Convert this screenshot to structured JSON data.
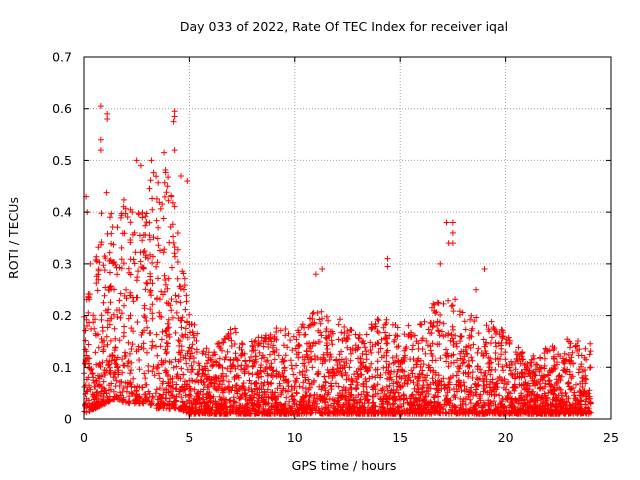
{
  "chart_data": {
    "type": "scatter",
    "title": "Day 033 of 2022, Rate Of TEC Index for receiver iqal",
    "xlabel": "GPS time / hours",
    "ylabel": "ROTI / TECUs",
    "xlim": [
      0,
      25
    ],
    "ylim": [
      0,
      0.7
    ],
    "xticks": [
      0,
      5,
      10,
      15,
      20,
      25
    ],
    "yticks": [
      0,
      0.1,
      0.2,
      0.3,
      0.4,
      0.5,
      0.6,
      0.7
    ],
    "grid": true,
    "marker": "+",
    "color": "#ff0000",
    "envelope": {
      "x": [
        0,
        0.5,
        1.0,
        1.5,
        2.0,
        2.5,
        3.0,
        3.5,
        4.0,
        4.5,
        5.0,
        5.5,
        6,
        7,
        8,
        9,
        10,
        11,
        12,
        13,
        14,
        15,
        16,
        17,
        18,
        19,
        20,
        21,
        22,
        23,
        24
      ],
      "upper": [
        0.25,
        0.3,
        0.45,
        0.38,
        0.45,
        0.4,
        0.45,
        0.5,
        0.5,
        0.35,
        0.22,
        0.15,
        0.13,
        0.18,
        0.15,
        0.18,
        0.17,
        0.22,
        0.2,
        0.16,
        0.2,
        0.18,
        0.19,
        0.25,
        0.22,
        0.2,
        0.17,
        0.12,
        0.14,
        0.16,
        0.15
      ],
      "lower": [
        0.01,
        0.02,
        0.03,
        0.04,
        0.03,
        0.03,
        0.03,
        0.02,
        0.02,
        0.02,
        0.01,
        0.01,
        0.01,
        0.01,
        0.01,
        0.01,
        0.01,
        0.01,
        0.01,
        0.01,
        0.01,
        0.01,
        0.01,
        0.01,
        0.01,
        0.01,
        0.01,
        0.01,
        0.01,
        0.01,
        0.01
      ]
    },
    "outliers": [
      {
        "x": 0.8,
        "y": 0.605
      },
      {
        "x": 1.1,
        "y": 0.59
      },
      {
        "x": 1.1,
        "y": 0.58
      },
      {
        "x": 0.8,
        "y": 0.54
      },
      {
        "x": 0.8,
        "y": 0.52
      },
      {
        "x": 4.3,
        "y": 0.595
      },
      {
        "x": 4.3,
        "y": 0.585
      },
      {
        "x": 4.25,
        "y": 0.575
      },
      {
        "x": 4.3,
        "y": 0.52
      },
      {
        "x": 2.5,
        "y": 0.5
      },
      {
        "x": 2.7,
        "y": 0.49
      },
      {
        "x": 3.2,
        "y": 0.5
      },
      {
        "x": 3.8,
        "y": 0.515
      },
      {
        "x": 0.1,
        "y": 0.43
      },
      {
        "x": 0.15,
        "y": 0.4
      },
      {
        "x": 17.2,
        "y": 0.38
      },
      {
        "x": 17.5,
        "y": 0.38
      },
      {
        "x": 17.5,
        "y": 0.36
      },
      {
        "x": 17.3,
        "y": 0.34
      },
      {
        "x": 17.5,
        "y": 0.34
      },
      {
        "x": 0.3,
        "y": 0.3
      },
      {
        "x": 4.6,
        "y": 0.47
      },
      {
        "x": 4.9,
        "y": 0.46
      },
      {
        "x": 14.4,
        "y": 0.31
      },
      {
        "x": 14.4,
        "y": 0.295
      },
      {
        "x": 11.3,
        "y": 0.29
      },
      {
        "x": 11.0,
        "y": 0.28
      },
      {
        "x": 19.0,
        "y": 0.29
      },
      {
        "x": 18.6,
        "y": 0.25
      },
      {
        "x": 16.9,
        "y": 0.3
      }
    ]
  }
}
